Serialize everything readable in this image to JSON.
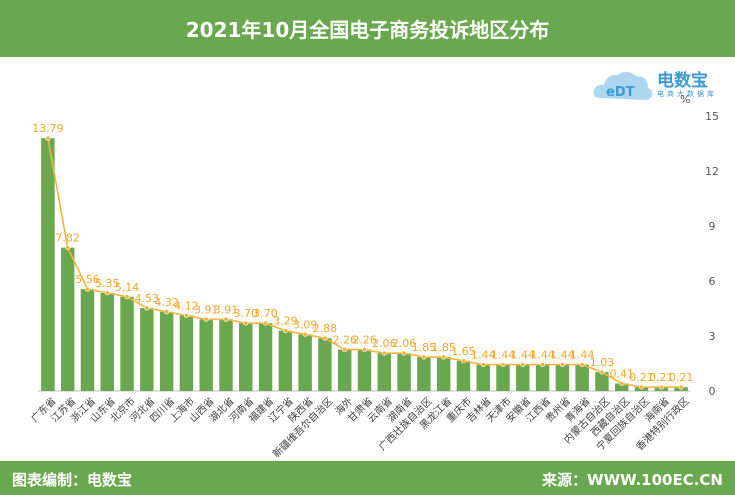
{
  "header": {
    "title": "2021年10月全国电子商务投诉地区分布"
  },
  "footer": {
    "left": "图表编制：电数宝",
    "right": "来源：WWW.100EC.CN"
  },
  "logo": {
    "name": "电数宝",
    "sub": "电商大数据库",
    "mark": "eDT"
  },
  "colors": {
    "bar": "#6aa84f",
    "line": "#f4b43c",
    "label": "#f4a62a",
    "header": "#6aa84f"
  },
  "chart_data": {
    "type": "bar",
    "title": "2021年10月全国电子商务投诉地区分布",
    "unit": "%",
    "ylim": [
      0,
      15
    ],
    "yticks": [
      0,
      3,
      6,
      9,
      12,
      15
    ],
    "grid": false,
    "overlay_line": true,
    "categories": [
      "广东省",
      "江苏省",
      "浙江省",
      "山东省",
      "北京市",
      "河北省",
      "四川省",
      "上海市",
      "山西省",
      "湖北省",
      "河南省",
      "福建省",
      "辽宁省",
      "陕西省",
      "新疆维吾尔自治区",
      "海外",
      "甘肃省",
      "云南省",
      "湖南省",
      "广西壮族自治区",
      "黑龙江省",
      "重庆市",
      "吉林省",
      "天津市",
      "安徽省",
      "江西省",
      "贵州省",
      "青海省",
      "内蒙古自治区",
      "西藏自治区",
      "宁夏回族自治区",
      "海南省",
      "香港特别行政区"
    ],
    "values": [
      13.79,
      7.82,
      5.56,
      5.35,
      5.14,
      4.53,
      4.32,
      4.12,
      3.91,
      3.91,
      3.7,
      3.7,
      3.29,
      3.09,
      2.88,
      2.26,
      2.26,
      2.06,
      2.06,
      1.85,
      1.85,
      1.65,
      1.44,
      1.44,
      1.44,
      1.44,
      1.44,
      1.44,
      1.03,
      0.41,
      0.21,
      0.21,
      0.21
    ],
    "value_labels": [
      "13.79",
      "7.82",
      "5.56",
      "5.35",
      "5.14",
      "4.53",
      "4.32",
      "4.12",
      "3.91",
      "3.91",
      "3.70",
      "3.70",
      "3.29",
      "3.09",
      "2.88",
      "2.26",
      "2.26",
      "2.06",
      "2.06",
      "1.85",
      "1.85",
      "1.65",
      "1.44",
      "1.44",
      "1.44",
      "1.44",
      "1.44",
      "1.44",
      "1.03",
      "0.41",
      "0.21",
      "0.21",
      "0.21"
    ]
  }
}
